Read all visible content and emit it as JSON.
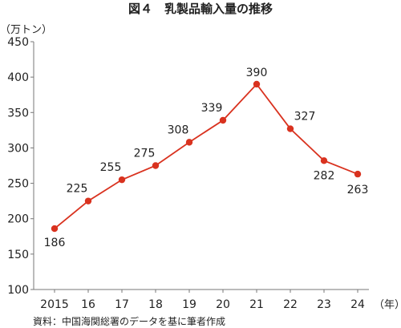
{
  "chart_data": {
    "type": "line",
    "title": "図４　乳製品輸入量の推移",
    "y_unit_label": "（万トン）",
    "x_unit_label": "（年）",
    "source": "資料：中国海関総署のデータを基に筆者作成",
    "categories": [
      "2015",
      "16",
      "17",
      "18",
      "19",
      "20",
      "21",
      "22",
      "23",
      "24"
    ],
    "series": [
      {
        "values": [
          186,
          225,
          255,
          275,
          308,
          339,
          390,
          327,
          282,
          263
        ],
        "color": "#d9321f"
      }
    ],
    "ylim": [
      100,
      450
    ],
    "yticks": [
      100,
      150,
      200,
      250,
      300,
      350,
      400,
      450
    ],
    "grid": false,
    "legend": "none",
    "axis_color": "#777777"
  }
}
